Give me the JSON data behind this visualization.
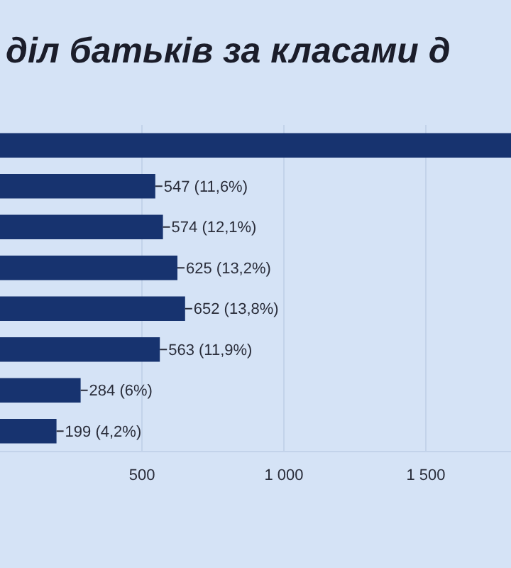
{
  "chart_data": {
    "type": "bar",
    "orientation": "horizontal",
    "title": "діл батьків за класами д",
    "categories": [
      null,
      null,
      null,
      null,
      null,
      null,
      null,
      null
    ],
    "values": [
      1800,
      547,
      574,
      625,
      652,
      563,
      284,
      199
    ],
    "value_labels": [
      null,
      "547 (11,6%)",
      "574 (12,1%)",
      "625 (13,2%)",
      "652 (13,8%)",
      "563 (11,9%)",
      "284 (6%)",
      "199 (4,2%)"
    ],
    "color": "#17336f",
    "xlim": [
      0,
      1800
    ],
    "xticks": [
      500,
      {
        "value": 1000,
        "label": "1 000"
      },
      {
        "value": 1500,
        "label": "1 500"
      }
    ],
    "grid": "x",
    "tick_labels": "x"
  }
}
